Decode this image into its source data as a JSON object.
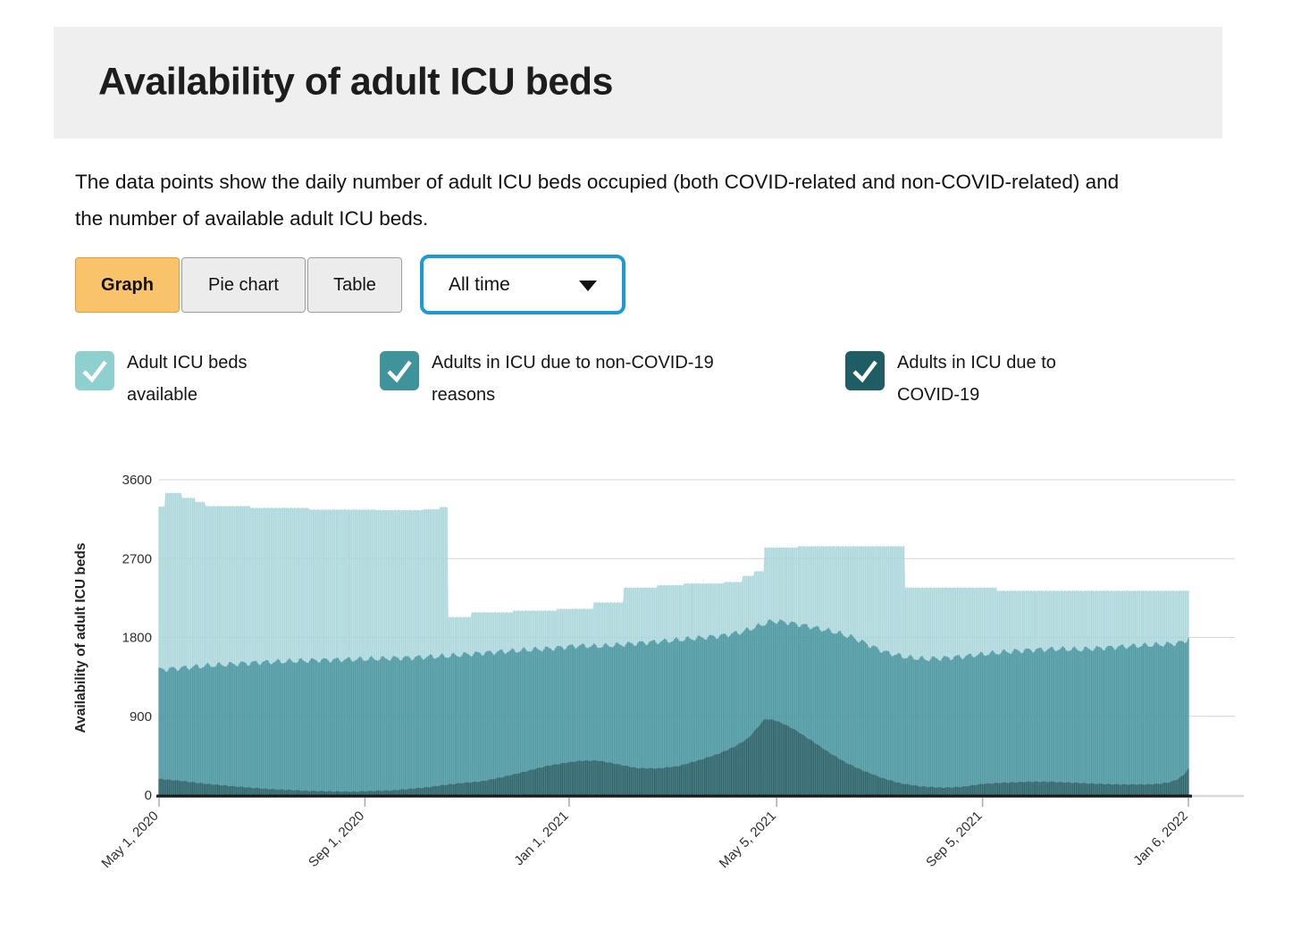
{
  "header": {
    "title": "Availability of adult ICU beds"
  },
  "description": "The data points show the daily number of adult ICU beds occupied (both COVID-related and non-COVID-related) and the number of available adult ICU beds.",
  "toolbar": {
    "buttons": [
      {
        "label": "Graph",
        "active": true
      },
      {
        "label": "Pie chart",
        "active": false
      },
      {
        "label": "Table",
        "active": false
      }
    ],
    "time_range": {
      "value": "All time",
      "icon": "chevron-down-icon"
    }
  },
  "legend": [
    {
      "label": "Adult ICU beds available",
      "color": "#8ed0d0",
      "checked": true
    },
    {
      "label": "Adults in ICU due to non-COVID-19 reasons",
      "color": "#3f949b",
      "checked": true
    },
    {
      "label": "Adults in ICU due to COVID-19",
      "color": "#1e5d64",
      "checked": true
    }
  ],
  "chart_data": {
    "type": "bar",
    "stacked": true,
    "title": "",
    "xlabel": "",
    "ylabel": "Availability of adult ICU beds",
    "ylim": [
      0,
      3600
    ],
    "yticks": [
      0,
      900,
      1800,
      2700,
      3600
    ],
    "grid": true,
    "day0_date": "May 1, 2020",
    "last_date": "Jan 6, 2022",
    "days_total": 615,
    "xticks": [
      {
        "day": 0,
        "label": "May 1, 2020"
      },
      {
        "day": 123,
        "label": "Sep 1, 2020"
      },
      {
        "day": 245,
        "label": "Jan 1, 2021"
      },
      {
        "day": 369,
        "label": "May 5, 2021"
      },
      {
        "day": 492,
        "label": "Sep 5, 2021"
      },
      {
        "day": 615,
        "label": "Jan 6, 2022"
      }
    ],
    "series_note": "Daily stacked bars; keyframes are [day_index, beds]. capacity_total = top of stack (available + occupied); occupied_total = COVID + non-COVID occupancy; covid = bottom dark band. Intermediate days are interpolated (capacity stepwise, others linear) with a weekly dip oscillation on occupied_total.",
    "series": [
      {
        "name": "Adults in ICU due to COVID-19",
        "color": "#2a626a",
        "interp": "linear",
        "keyframes": [
          [
            0,
            185
          ],
          [
            12,
            165
          ],
          [
            25,
            135
          ],
          [
            45,
            100
          ],
          [
            65,
            70
          ],
          [
            90,
            48
          ],
          [
            115,
            40
          ],
          [
            140,
            55
          ],
          [
            158,
            85
          ],
          [
            170,
            115
          ],
          [
            182,
            140
          ],
          [
            192,
            155
          ],
          [
            205,
            205
          ],
          [
            218,
            265
          ],
          [
            232,
            335
          ],
          [
            245,
            375
          ],
          [
            252,
            392
          ],
          [
            262,
            395
          ],
          [
            272,
            360
          ],
          [
            285,
            310
          ],
          [
            298,
            305
          ],
          [
            310,
            330
          ],
          [
            322,
            395
          ],
          [
            334,
            470
          ],
          [
            344,
            555
          ],
          [
            352,
            650
          ],
          [
            358,
            780
          ],
          [
            362,
            868
          ],
          [
            367,
            860
          ],
          [
            373,
            815
          ],
          [
            380,
            745
          ],
          [
            390,
            620
          ],
          [
            400,
            490
          ],
          [
            410,
            375
          ],
          [
            420,
            285
          ],
          [
            432,
            195
          ],
          [
            443,
            135
          ],
          [
            455,
            100
          ],
          [
            468,
            85
          ],
          [
            480,
            95
          ],
          [
            492,
            128
          ],
          [
            505,
            142
          ],
          [
            518,
            152
          ],
          [
            532,
            152
          ],
          [
            546,
            142
          ],
          [
            560,
            130
          ],
          [
            574,
            122
          ],
          [
            588,
            122
          ],
          [
            597,
            128
          ],
          [
            604,
            148
          ],
          [
            609,
            185
          ],
          [
            612,
            230
          ],
          [
            615,
            298
          ]
        ]
      },
      {
        "name": "occupied_total (COVID + non-COVID occupancy)",
        "color": "#4e99a2",
        "interp": "linear",
        "keyframes": [
          [
            0,
            1430
          ],
          [
            30,
            1478
          ],
          [
            60,
            1515
          ],
          [
            95,
            1540
          ],
          [
            123,
            1552
          ],
          [
            150,
            1568
          ],
          [
            173,
            1588
          ],
          [
            195,
            1625
          ],
          [
            215,
            1650
          ],
          [
            235,
            1675
          ],
          [
            250,
            1705
          ],
          [
            262,
            1698
          ],
          [
            275,
            1715
          ],
          [
            290,
            1740
          ],
          [
            305,
            1762
          ],
          [
            320,
            1790
          ],
          [
            335,
            1815
          ],
          [
            348,
            1860
          ],
          [
            358,
            1930
          ],
          [
            366,
            1985
          ],
          [
            374,
            1975
          ],
          [
            383,
            1945
          ],
          [
            393,
            1905
          ],
          [
            405,
            1855
          ],
          [
            415,
            1795
          ],
          [
            425,
            1705
          ],
          [
            435,
            1625
          ],
          [
            447,
            1572
          ],
          [
            458,
            1552
          ],
          [
            470,
            1565
          ],
          [
            482,
            1585
          ],
          [
            494,
            1612
          ],
          [
            508,
            1638
          ],
          [
            522,
            1658
          ],
          [
            536,
            1668
          ],
          [
            550,
            1662
          ],
          [
            564,
            1680
          ],
          [
            578,
            1698
          ],
          [
            592,
            1712
          ],
          [
            602,
            1722
          ],
          [
            609,
            1735
          ],
          [
            613,
            1760
          ],
          [
            615,
            1788
          ]
        ]
      },
      {
        "name": "capacity_total (top of available band)",
        "color": "#a9d6da",
        "interp": "step",
        "keyframes": [
          [
            0,
            3292
          ],
          [
            4,
            3448
          ],
          [
            14,
            3392
          ],
          [
            22,
            3346
          ],
          [
            28,
            3298
          ],
          [
            55,
            3278
          ],
          [
            90,
            3258
          ],
          [
            130,
            3252
          ],
          [
            158,
            3262
          ],
          [
            168,
            3288
          ],
          [
            173,
            2032
          ],
          [
            187,
            2085
          ],
          [
            212,
            2105
          ],
          [
            238,
            2125
          ],
          [
            260,
            2198
          ],
          [
            278,
            2368
          ],
          [
            298,
            2395
          ],
          [
            314,
            2415
          ],
          [
            338,
            2432
          ],
          [
            349,
            2502
          ],
          [
            356,
            2555
          ],
          [
            362,
            2825
          ],
          [
            382,
            2840
          ],
          [
            446,
            2368
          ],
          [
            501,
            2332
          ],
          [
            615,
            2332
          ]
        ]
      }
    ],
    "render": {
      "bar_colors": {
        "available": "#a9d6da",
        "non_covid": "#4e99a2",
        "covid": "#2a626a"
      },
      "area_opacity": {
        "available": 0.55,
        "non_covid": 0.72,
        "covid": 0.7
      },
      "weekly_dip": {
        "series": "occupied_total",
        "amplitude": 26,
        "period_days": 7
      }
    }
  }
}
